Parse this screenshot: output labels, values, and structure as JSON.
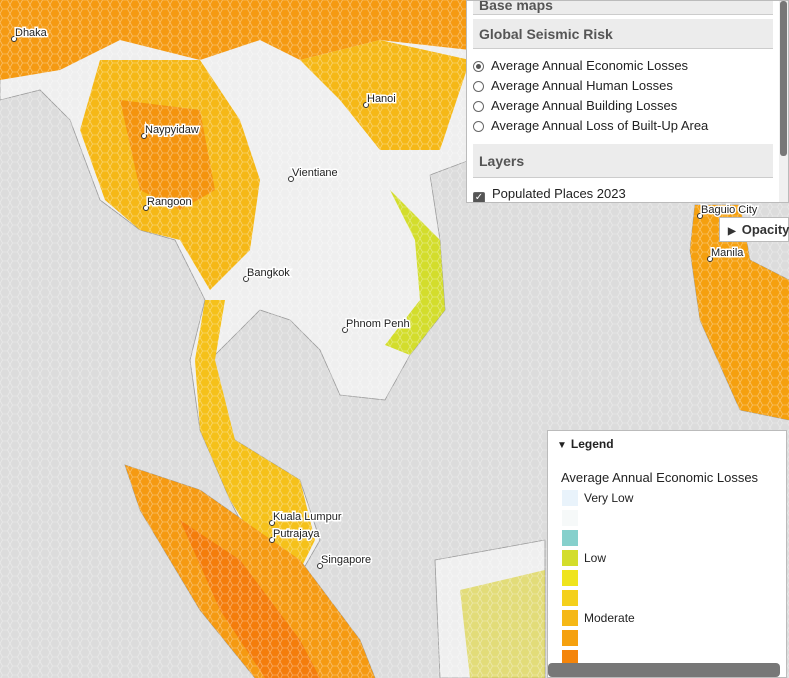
{
  "map": {
    "places": [
      "Dhaka",
      "Naypyidaw",
      "Rangoon",
      "Hanoi",
      "Vientiane",
      "Bangkok",
      "Phnom Penh",
      "Kuala Lumpur",
      "Putrajaya",
      "Singapore",
      "Baguio City",
      "Manila"
    ]
  },
  "panel": {
    "base_maps": "Base maps",
    "risk_title": "Global Seismic Risk",
    "options": [
      "Average Annual Economic Losses",
      "Average Annual Human Losses",
      "Average Annual Building Losses",
      "Average Annual Loss of Built-Up Area"
    ],
    "selected": 0,
    "layers_title": "Layers",
    "layers": [
      {
        "label": "Populated Places 2023",
        "checked": true
      }
    ]
  },
  "opacity": "Opacity",
  "legend": {
    "toggle": "Legend",
    "title": "Average Annual Economic Losses",
    "items": [
      {
        "label": "Very Low",
        "color": "#e9f3fb"
      },
      {
        "label": null,
        "color": "#f6f9f9"
      },
      {
        "label": null,
        "color": "#86d0cc"
      },
      {
        "label": "Low",
        "color": "#d3dd2c"
      },
      {
        "label": null,
        "color": "#efe41d"
      },
      {
        "label": null,
        "color": "#f4d01c"
      },
      {
        "label": "Moderate",
        "color": "#f5b817"
      },
      {
        "label": null,
        "color": "#f5a10f"
      },
      {
        "label": null,
        "color": "#f4850b"
      }
    ]
  }
}
